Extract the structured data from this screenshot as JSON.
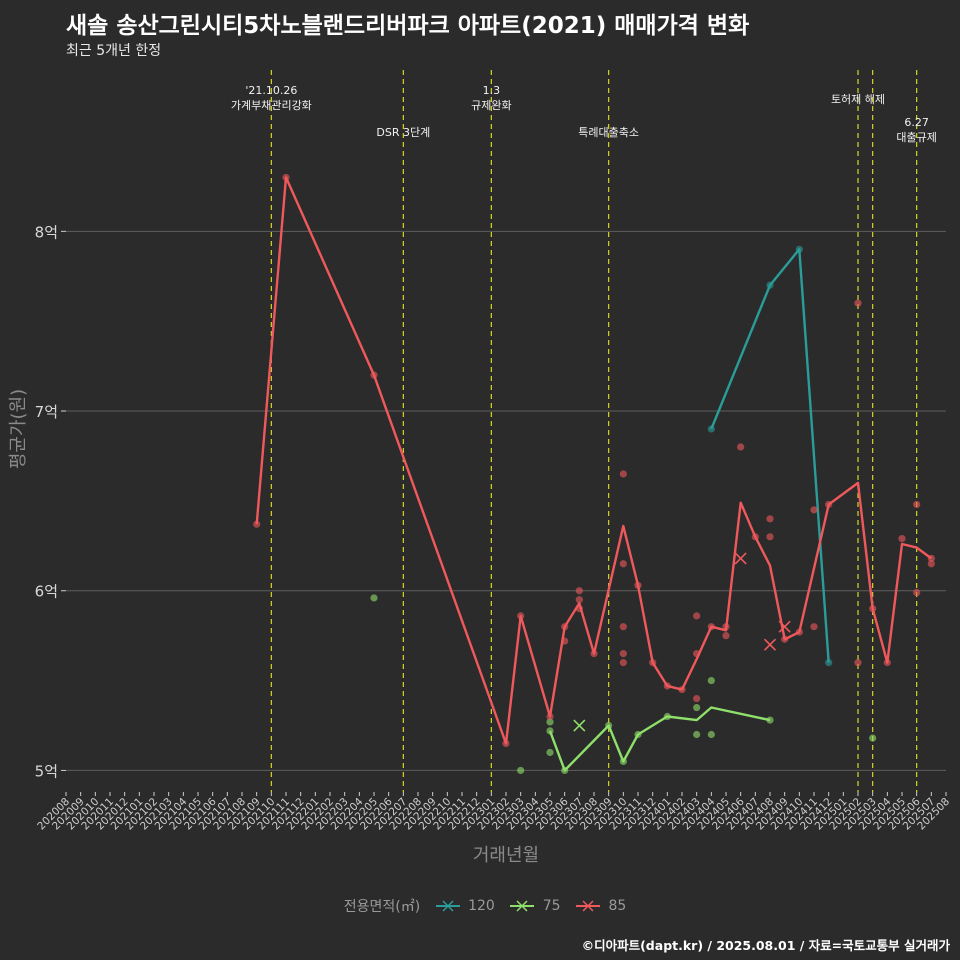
{
  "header": {
    "title": "새솔 송산그린시티5차노블랜드리버파크 아파트(2021) 매매가격 변화",
    "subtitle": "최근 5개년 한정"
  },
  "caption": "©디아파트(dapt.kr) / 2025.08.01 / 자료=국토교통부 실거래가",
  "legend": {
    "title": "전용면적(㎡)",
    "items": [
      {
        "label": "120",
        "color": "#2a9d9a"
      },
      {
        "label": "75",
        "color": "#8fe06a"
      },
      {
        "label": "85",
        "color": "#f0595c"
      }
    ]
  },
  "chart_data": {
    "type": "line",
    "xlabel": "거래년월",
    "ylabel": "평균가(원)",
    "x_ticks": [
      "202008",
      "202009",
      "202010",
      "202011",
      "202012",
      "202101",
      "202102",
      "202103",
      "202104",
      "202105",
      "202106",
      "202107",
      "202108",
      "202109",
      "202110",
      "202111",
      "202112",
      "202201",
      "202202",
      "202203",
      "202204",
      "202205",
      "202206",
      "202207",
      "202208",
      "202209",
      "202210",
      "202211",
      "202212",
      "202301",
      "202302",
      "202303",
      "202304",
      "202305",
      "202306",
      "202307",
      "202308",
      "202309",
      "202310",
      "202311",
      "202312",
      "202401",
      "202402",
      "202403",
      "202404",
      "202405",
      "202406",
      "202407",
      "202408",
      "202409",
      "202410",
      "202411",
      "202412",
      "202501",
      "202502",
      "202503",
      "202504",
      "202505",
      "202506",
      "202507",
      "202508"
    ],
    "y_ticks": [
      {
        "value": 5.0,
        "label": "5억"
      },
      {
        "value": 6.0,
        "label": "6억"
      },
      {
        "value": 7.0,
        "label": "7억"
      },
      {
        "value": 8.0,
        "label": "8억"
      }
    ],
    "ylim": [
      4.88,
      8.92
    ],
    "grid": true,
    "legend_position": "bottom",
    "events": [
      {
        "x": "202110",
        "lines": [
          "'21.10.26",
          "가계부채관리강화"
        ],
        "level": 1
      },
      {
        "x": "202207",
        "lines": [
          "DSR 3단계"
        ],
        "level": 2
      },
      {
        "x": "202301",
        "lines": [
          "1.3",
          "규제완화"
        ],
        "level": 1
      },
      {
        "x": "202309",
        "lines": [
          "특례대출축소"
        ],
        "level": 2
      },
      {
        "x": "202502",
        "lines": [
          "토허제 해제"
        ],
        "level": 0
      },
      {
        "x": "202503",
        "lines": [],
        "level": 0
      },
      {
        "x": "202506",
        "lines": [
          "6.27",
          "대출규제"
        ],
        "level": 3
      }
    ],
    "series": [
      {
        "name": "120",
        "color": "#2a9d9a",
        "line": [
          [
            "202404",
            6.9
          ],
          [
            "202408",
            7.7
          ],
          [
            "202410",
            7.9
          ],
          [
            "202412",
            5.6
          ]
        ],
        "points": [
          [
            "202404",
            6.9
          ],
          [
            "202408",
            7.7
          ],
          [
            "202410",
            7.9
          ],
          [
            "202412",
            5.6
          ]
        ],
        "crosses": []
      },
      {
        "name": "75",
        "color": "#8fe06a",
        "line": [
          [
            "202305",
            5.22
          ],
          [
            "202306",
            5.0
          ],
          [
            "202309",
            5.25
          ],
          [
            "202310",
            5.05
          ],
          [
            "202311",
            5.2
          ],
          [
            "202401",
            5.3
          ],
          [
            "202403",
            5.28
          ],
          [
            "202404",
            5.35
          ],
          [
            "202408",
            5.28
          ]
        ],
        "points": [
          [
            "202205",
            5.96
          ],
          [
            "202303",
            5.0
          ],
          [
            "202305",
            5.27
          ],
          [
            "202305",
            5.22
          ],
          [
            "202305",
            5.1
          ],
          [
            "202306",
            5.0
          ],
          [
            "202309",
            5.25
          ],
          [
            "202310",
            5.05
          ],
          [
            "202311",
            5.2
          ],
          [
            "202401",
            5.3
          ],
          [
            "202403",
            5.35
          ],
          [
            "202403",
            5.2
          ],
          [
            "202404",
            5.5
          ],
          [
            "202404",
            5.2
          ],
          [
            "202408",
            5.28
          ],
          [
            "202503",
            5.18
          ]
        ],
        "crosses": [
          [
            "202307",
            5.25
          ]
        ]
      },
      {
        "name": "85",
        "color": "#f0595c",
        "line": [
          [
            "202109",
            6.37
          ],
          [
            "202111",
            8.3
          ],
          [
            "202205",
            7.2
          ],
          [
            "202302",
            5.15
          ],
          [
            "202303",
            5.86
          ],
          [
            "202305",
            5.3
          ],
          [
            "202306",
            5.8
          ],
          [
            "202307",
            5.93
          ],
          [
            "202308",
            5.65
          ],
          [
            "202310",
            6.36
          ],
          [
            "202311",
            6.03
          ],
          [
            "202312",
            5.6
          ],
          [
            "202401",
            5.47
          ],
          [
            "202402",
            5.45
          ],
          [
            "202403",
            5.62
          ],
          [
            "202404",
            5.8
          ],
          [
            "202405",
            5.78
          ],
          [
            "202406",
            6.49
          ],
          [
            "202407",
            6.3
          ],
          [
            "202408",
            6.14
          ],
          [
            "202409",
            5.73
          ],
          [
            "202410",
            5.77
          ],
          [
            "202412",
            6.48
          ],
          [
            "202502",
            6.6
          ],
          [
            "202503",
            5.9
          ],
          [
            "202504",
            5.6
          ],
          [
            "202505",
            6.26
          ],
          [
            "202506",
            6.24
          ],
          [
            "202507",
            6.18
          ]
        ],
        "points": [
          [
            "202109",
            6.37
          ],
          [
            "202111",
            8.3
          ],
          [
            "202205",
            7.2
          ],
          [
            "202302",
            5.15
          ],
          [
            "202303",
            5.86
          ],
          [
            "202305",
            5.3
          ],
          [
            "202306",
            5.72
          ],
          [
            "202306",
            5.8
          ],
          [
            "202307",
            5.9
          ],
          [
            "202307",
            5.95
          ],
          [
            "202307",
            6.0
          ],
          [
            "202308",
            5.65
          ],
          [
            "202310",
            6.65
          ],
          [
            "202310",
            6.15
          ],
          [
            "202310",
            5.8
          ],
          [
            "202310",
            5.65
          ],
          [
            "202310",
            5.6
          ],
          [
            "202311",
            6.03
          ],
          [
            "202312",
            5.6
          ],
          [
            "202401",
            5.47
          ],
          [
            "202402",
            5.45
          ],
          [
            "202403",
            5.86
          ],
          [
            "202403",
            5.65
          ],
          [
            "202403",
            5.4
          ],
          [
            "202404",
            5.8
          ],
          [
            "202405",
            5.75
          ],
          [
            "202405",
            5.8
          ],
          [
            "202406",
            6.8
          ],
          [
            "202407",
            6.3
          ],
          [
            "202408",
            6.4
          ],
          [
            "202408",
            6.3
          ],
          [
            "202409",
            5.73
          ],
          [
            "202410",
            5.77
          ],
          [
            "202411",
            6.45
          ],
          [
            "202411",
            5.8
          ],
          [
            "202412",
            6.48
          ],
          [
            "202502",
            7.6
          ],
          [
            "202502",
            5.6
          ],
          [
            "202503",
            5.9
          ],
          [
            "202504",
            5.6
          ],
          [
            "202505",
            6.29
          ],
          [
            "202506",
            6.48
          ],
          [
            "202506",
            5.99
          ],
          [
            "202507",
            6.18
          ],
          [
            "202507",
            6.15
          ]
        ],
        "crosses": [
          [
            "202406",
            6.18
          ],
          [
            "202408",
            5.7
          ],
          [
            "202409",
            5.8
          ]
        ]
      }
    ]
  }
}
